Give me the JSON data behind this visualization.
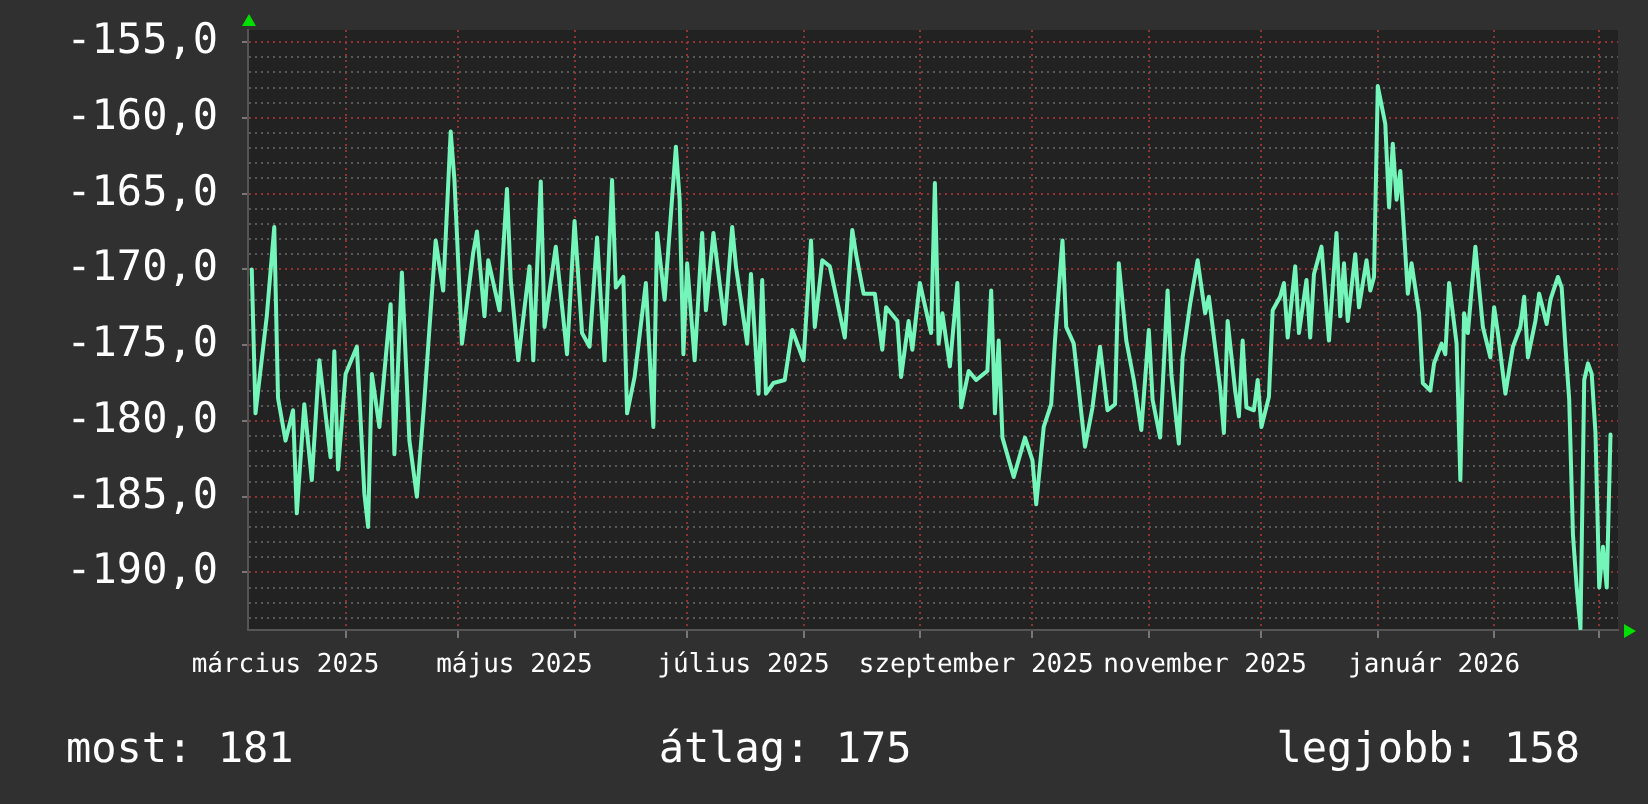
{
  "chart_data": {
    "type": "line",
    "color": "#74f5b9",
    "x": [
      "2025-03-07",
      "2025-03-08",
      "2025-03-11",
      "2025-03-13",
      "2025-03-14",
      "2025-03-16",
      "2025-03-18",
      "2025-03-19",
      "2025-03-21",
      "2025-03-23",
      "2025-03-25",
      "2025-03-28",
      "2025-03-29",
      "2025-03-30",
      "2025-04-01",
      "2025-04-04",
      "2025-04-06",
      "2025-04-07",
      "2025-04-08",
      "2025-04-10",
      "2025-04-13",
      "2025-04-14",
      "2025-04-16",
      "2025-04-18",
      "2025-04-20",
      "2025-04-22",
      "2025-04-23",
      "2025-04-25",
      "2025-04-27",
      "2025-04-29",
      "2025-04-30",
      "2025-05-02",
      "2025-05-05",
      "2025-05-06",
      "2025-05-08",
      "2025-05-09",
      "2025-05-12",
      "2025-05-14",
      "2025-05-15",
      "2025-05-17",
      "2025-05-20",
      "2025-05-21",
      "2025-05-23",
      "2025-05-24",
      "2025-05-27",
      "2025-05-30",
      "2025-06-01",
      "2025-06-03",
      "2025-06-05",
      "2025-06-07",
      "2025-06-09",
      "2025-06-11",
      "2025-06-12",
      "2025-06-14",
      "2025-06-15",
      "2025-06-17",
      "2025-06-20",
      "2025-06-22",
      "2025-06-23",
      "2025-06-25",
      "2025-06-28",
      "2025-06-29",
      "2025-06-30",
      "2025-07-01",
      "2025-07-03",
      "2025-07-05",
      "2025-07-06",
      "2025-07-08",
      "2025-07-11",
      "2025-07-13",
      "2025-07-14",
      "2025-07-17",
      "2025-07-18",
      "2025-07-20",
      "2025-07-21",
      "2025-07-22",
      "2025-07-24",
      "2025-07-27",
      "2025-07-29",
      "2025-08-01",
      "2025-08-03",
      "2025-08-04",
      "2025-08-06",
      "2025-08-08",
      "2025-08-12",
      "2025-08-14",
      "2025-08-15",
      "2025-08-17",
      "2025-08-20",
      "2025-08-22",
      "2025-08-23",
      "2025-08-26",
      "2025-08-27",
      "2025-08-29",
      "2025-08-30",
      "2025-09-01",
      "2025-09-02",
      "2025-09-04",
      "2025-09-05",
      "2025-09-06",
      "2025-09-07",
      "2025-09-09",
      "2025-09-11",
      "2025-09-12",
      "2025-09-14",
      "2025-09-16",
      "2025-09-19",
      "2025-09-20",
      "2025-09-21",
      "2025-09-22",
      "2025-09-23",
      "2025-09-26",
      "2025-09-29",
      "2025-10-01",
      "2025-10-02",
      "2025-10-04",
      "2025-10-06",
      "2025-10-07",
      "2025-10-09",
      "2025-10-10",
      "2025-10-12",
      "2025-10-15",
      "2025-10-17",
      "2025-10-19",
      "2025-10-21",
      "2025-10-23",
      "2025-10-24",
      "2025-10-26",
      "2025-10-28",
      "2025-10-30",
      "2025-11-01",
      "2025-11-02",
      "2025-11-04",
      "2025-11-06",
      "2025-11-07",
      "2025-11-09",
      "2025-11-10",
      "2025-11-12",
      "2025-11-14",
      "2025-11-16",
      "2025-11-17",
      "2025-11-18",
      "2025-11-20",
      "2025-11-21",
      "2025-11-22",
      "2025-11-24",
      "2025-11-25",
      "2025-11-26",
      "2025-11-27",
      "2025-11-29",
      "2025-11-30",
      "2025-12-01",
      "2025-12-03",
      "2025-12-04",
      "2025-12-06",
      "2025-12-07",
      "2025-12-08",
      "2025-12-10",
      "2025-12-11",
      "2025-12-13",
      "2025-12-14",
      "2025-12-15",
      "2025-12-17",
      "2025-12-19",
      "2025-12-21",
      "2025-12-22",
      "2025-12-23",
      "2025-12-24",
      "2025-12-26",
      "2025-12-27",
      "2025-12-29",
      "2025-12-30",
      "2025-12-31",
      "2026-01-01",
      "2026-01-03",
      "2026-01-04",
      "2026-01-05",
      "2026-01-06",
      "2026-01-07",
      "2026-01-09",
      "2026-01-10",
      "2026-01-12",
      "2026-01-13",
      "2026-01-15",
      "2026-01-16",
      "2026-01-18",
      "2026-01-19",
      "2026-01-20",
      "2026-01-22",
      "2026-01-23",
      "2026-01-24",
      "2026-01-25",
      "2026-01-27",
      "2026-01-28",
      "2026-01-29",
      "2026-01-31",
      "2026-02-01",
      "2026-02-02",
      "2026-02-04",
      "2026-02-06",
      "2026-02-08",
      "2026-02-09",
      "2026-02-10",
      "2026-02-12",
      "2026-02-13",
      "2026-02-15",
      "2026-02-16",
      "2026-02-18",
      "2026-02-19",
      "2026-02-20",
      "2026-02-21",
      "2026-02-22",
      "2026-02-23",
      "2026-02-24",
      "2026-02-25",
      "2026-02-26",
      "2026-02-27",
      "2026-02-28",
      "2026-03-01",
      "2026-03-02",
      "2026-03-03",
      "2026-03-04"
    ],
    "values": [
      -170.0,
      -179.5,
      -173.1,
      -167.2,
      -178.5,
      -181.3,
      -179.3,
      -186.1,
      -178.9,
      -183.9,
      -176.0,
      -182.4,
      -175.4,
      -183.2,
      -176.9,
      -175.1,
      -184.8,
      -187.0,
      -176.9,
      -180.4,
      -172.3,
      -182.2,
      -170.2,
      -181.3,
      -185.0,
      -178.6,
      -175.1,
      -168.1,
      -171.4,
      -160.9,
      -164.1,
      -174.9,
      -168.9,
      -167.5,
      -173.1,
      -169.4,
      -172.7,
      -164.7,
      -170.7,
      -176.0,
      -169.8,
      -176.0,
      -164.2,
      -173.8,
      -168.5,
      -175.6,
      -166.8,
      -174.2,
      -175.1,
      -167.9,
      -176.0,
      -164.1,
      -171.2,
      -170.5,
      -179.5,
      -177.1,
      -170.9,
      -180.4,
      -167.6,
      -172.0,
      -161.9,
      -165.4,
      -175.6,
      -169.6,
      -176.0,
      -167.6,
      -172.7,
      -167.6,
      -173.6,
      -167.2,
      -169.8,
      -174.9,
      -170.3,
      -178.2,
      -170.7,
      -178.2,
      -177.5,
      -177.3,
      -174.0,
      -176.0,
      -168.1,
      -173.8,
      -169.4,
      -169.8,
      -174.5,
      -167.4,
      -169.0,
      -171.6,
      -171.6,
      -175.3,
      -172.5,
      -173.4,
      -177.1,
      -173.4,
      -175.3,
      -170.9,
      -172.0,
      -174.2,
      -164.3,
      -174.9,
      -172.9,
      -176.4,
      -170.9,
      -179.1,
      -176.7,
      -177.3,
      -176.7,
      -171.4,
      -179.5,
      -174.7,
      -181.1,
      -183.7,
      -181.1,
      -182.6,
      -185.5,
      -180.4,
      -178.9,
      -174.7,
      -168.1,
      -173.8,
      -174.9,
      -181.7,
      -179.1,
      -175.1,
      -179.3,
      -178.9,
      -169.6,
      -174.7,
      -177.3,
      -180.6,
      -174.0,
      -178.6,
      -181.1,
      -171.4,
      -176.9,
      -181.5,
      -175.8,
      -172.3,
      -169.4,
      -172.9,
      -171.8,
      -173.8,
      -177.8,
      -180.8,
      -173.4,
      -178.0,
      -179.7,
      -174.7,
      -179.1,
      -179.3,
      -177.3,
      -180.4,
      -178.4,
      -172.7,
      -171.8,
      -170.9,
      -174.5,
      -169.8,
      -174.2,
      -170.7,
      -174.5,
      -170.3,
      -168.5,
      -174.7,
      -167.6,
      -173.1,
      -169.6,
      -173.4,
      -169.0,
      -172.5,
      -169.4,
      -171.4,
      -170.5,
      -157.9,
      -160.4,
      -165.9,
      -161.7,
      -165.4,
      -163.5,
      -171.6,
      -169.6,
      -172.9,
      -177.5,
      -178.0,
      -176.2,
      -174.9,
      -175.6,
      -170.9,
      -174.9,
      -183.9,
      -172.9,
      -174.2,
      -168.5,
      -171.2,
      -173.8,
      -175.8,
      -172.5,
      -174.2,
      -178.2,
      -175.1,
      -173.8,
      -171.8,
      -175.8,
      -173.4,
      -171.6,
      -173.6,
      -172.0,
      -170.5,
      -171.2,
      -175.1,
      -178.6,
      -187.5,
      -191.0,
      -193.7,
      -177.3,
      -176.2,
      -176.9,
      -180.8,
      -191.0,
      -188.3,
      -191.0,
      -180.9
    ],
    "xlim": [
      "2025-03-06",
      "2026-03-06"
    ],
    "ylim": [
      -193.8,
      -154.2
    ],
    "xticks": [
      {
        "value": "2025-03-16",
        "label": "március 2025"
      },
      {
        "value": "2025-04-01",
        "label": null
      },
      {
        "value": "2025-05-01",
        "label": null
      },
      {
        "value": "2025-05-16",
        "label": "május 2025"
      },
      {
        "value": "2025-06-01",
        "label": null
      },
      {
        "value": "2025-07-01",
        "label": null
      },
      {
        "value": "2025-07-16",
        "label": "július 2025"
      },
      {
        "value": "2025-08-01",
        "label": null
      },
      {
        "value": "2025-09-01",
        "label": null
      },
      {
        "value": "2025-09-16",
        "label": "szeptember 2025"
      },
      {
        "value": "2025-10-01",
        "label": null
      },
      {
        "value": "2025-11-01",
        "label": null
      },
      {
        "value": "2025-11-16",
        "label": "november 2025"
      },
      {
        "value": "2025-12-01",
        "label": null
      },
      {
        "value": "2026-01-01",
        "label": null
      },
      {
        "value": "2026-01-16",
        "label": "január 2026"
      },
      {
        "value": "2026-02-01",
        "label": null
      },
      {
        "value": "2026-03-01",
        "label": null
      }
    ],
    "yticks": [
      {
        "value": -193,
        "label": null
      },
      {
        "value": -192,
        "label": null
      },
      {
        "value": -191,
        "label": null
      },
      {
        "value": -190,
        "label": "-190,0"
      },
      {
        "value": -189,
        "label": null
      },
      {
        "value": -188,
        "label": null
      },
      {
        "value": -187,
        "label": null
      },
      {
        "value": -186,
        "label": null
      },
      {
        "value": -185,
        "label": "-185,0"
      },
      {
        "value": -184,
        "label": null
      },
      {
        "value": -183,
        "label": null
      },
      {
        "value": -182,
        "label": null
      },
      {
        "value": -181,
        "label": null
      },
      {
        "value": -180,
        "label": "-180,0"
      },
      {
        "value": -179,
        "label": null
      },
      {
        "value": -178,
        "label": null
      },
      {
        "value": -177,
        "label": null
      },
      {
        "value": -176,
        "label": null
      },
      {
        "value": -175,
        "label": "-175,0"
      },
      {
        "value": -174,
        "label": null
      },
      {
        "value": -173,
        "label": null
      },
      {
        "value": -172,
        "label": null
      },
      {
        "value": -171,
        "label": null
      },
      {
        "value": -170,
        "label": "-170,0"
      },
      {
        "value": -169,
        "label": null
      },
      {
        "value": -168,
        "label": null
      },
      {
        "value": -167,
        "label": null
      },
      {
        "value": -166,
        "label": null
      },
      {
        "value": -165,
        "label": "-165,0"
      },
      {
        "value": -164,
        "label": null
      },
      {
        "value": -163,
        "label": null
      },
      {
        "value": -162,
        "label": null
      },
      {
        "value": -161,
        "label": null
      },
      {
        "value": -160,
        "label": "-160,0"
      },
      {
        "value": -159,
        "label": null
      },
      {
        "value": -158,
        "label": null
      },
      {
        "value": -157,
        "label": null
      },
      {
        "value": -156,
        "label": null
      },
      {
        "value": -155,
        "label": "-155,0"
      }
    ],
    "grid": true,
    "annotations": [
      "most: 181",
      "átlag: 175",
      "legjobb: 158"
    ]
  }
}
